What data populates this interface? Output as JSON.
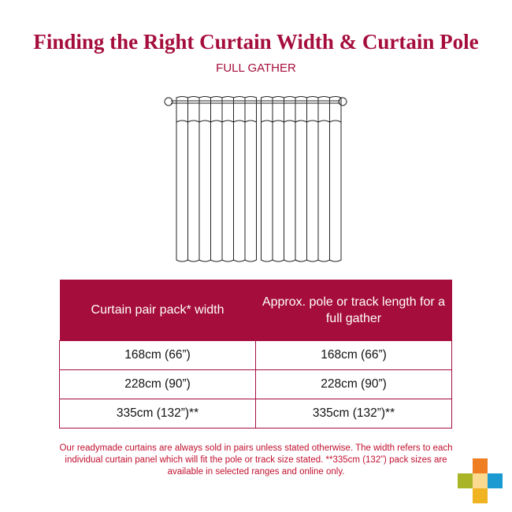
{
  "title": "Finding the Right Curtain Width & Curtain Pole",
  "subtitle": "FULL GATHER",
  "table": {
    "headers": [
      "Curtain pair pack* width",
      "Approx. pole or track length for a full gather"
    ],
    "rows": [
      [
        "168cm (66”)",
        "168cm (66”)"
      ],
      [
        "228cm (90”)",
        "228cm (90”)"
      ],
      [
        "335cm (132”)**",
        "335cm (132”)**"
      ]
    ]
  },
  "note": "Our readymade curtains are always sold in pairs unless stated otherwise. The width refers to each individual curtain panel which will fit the pole or track size stated. **335cm (132”) pack sizes are available in selected ranges and online only.",
  "colors": {
    "accent": "#a50d3c",
    "logo": [
      "#ef7d22",
      "#a9b526",
      "#fbd98e",
      "#1b9ad1",
      "#f0b322"
    ]
  }
}
